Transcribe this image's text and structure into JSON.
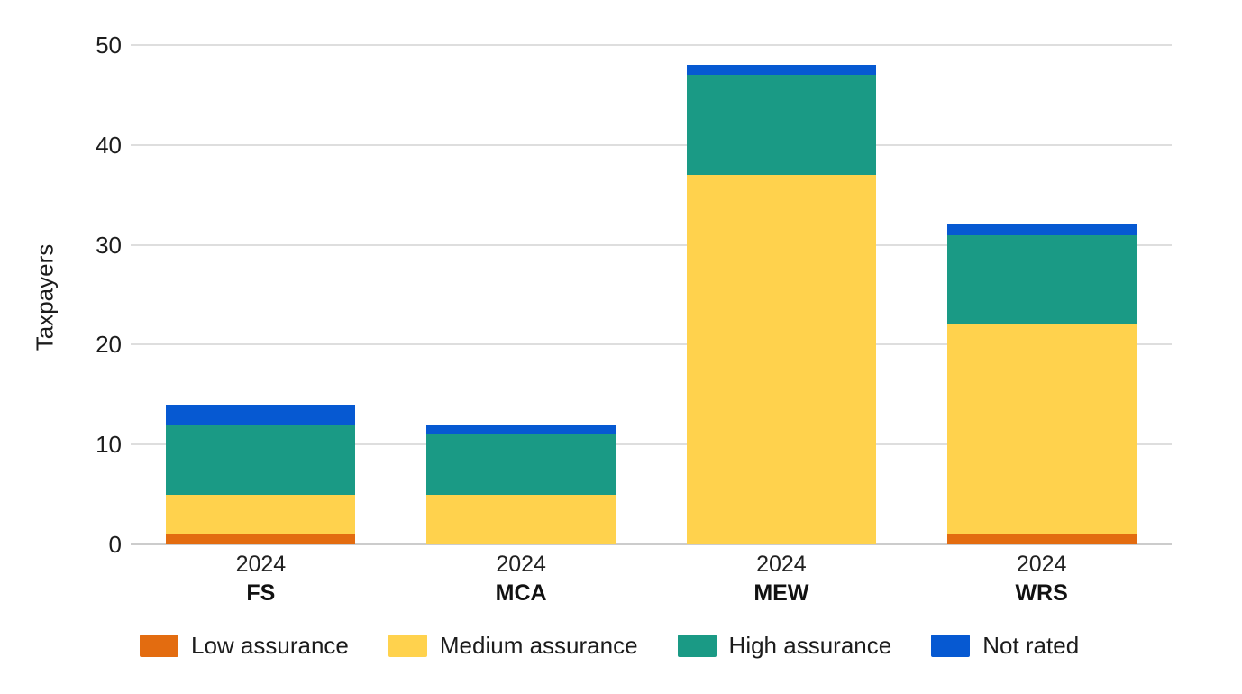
{
  "chart_data": {
    "type": "bar",
    "stacked": true,
    "title": "",
    "ylabel": "Taxpayers",
    "xlabel": "",
    "categories": [
      "FS",
      "MCA",
      "MEW",
      "WRS"
    ],
    "year_labels": [
      "2024",
      "2024",
      "2024",
      "2024"
    ],
    "series": [
      {
        "name": "Low assurance",
        "color": "#E36C10",
        "values": [
          1,
          0,
          0,
          1
        ]
      },
      {
        "name": "Medium assurance",
        "color": "#FFD24D",
        "values": [
          4,
          5,
          37,
          21
        ]
      },
      {
        "name": "High assurance",
        "color": "#1A9A85",
        "values": [
          7,
          6,
          10,
          9
        ]
      },
      {
        "name": "Not rated",
        "color": "#0659D2",
        "values": [
          2,
          1,
          1,
          1
        ]
      }
    ],
    "stack_totals": [
      14,
      12,
      48,
      32
    ],
    "ylim": [
      0,
      50
    ],
    "yticks": [
      0,
      10,
      20,
      30,
      40,
      50
    ],
    "grid": "horizontal",
    "grid_color": "#dedede",
    "axis_line_color": "#cccccc",
    "legend_position": "bottom",
    "background_color": "#ffffff"
  }
}
